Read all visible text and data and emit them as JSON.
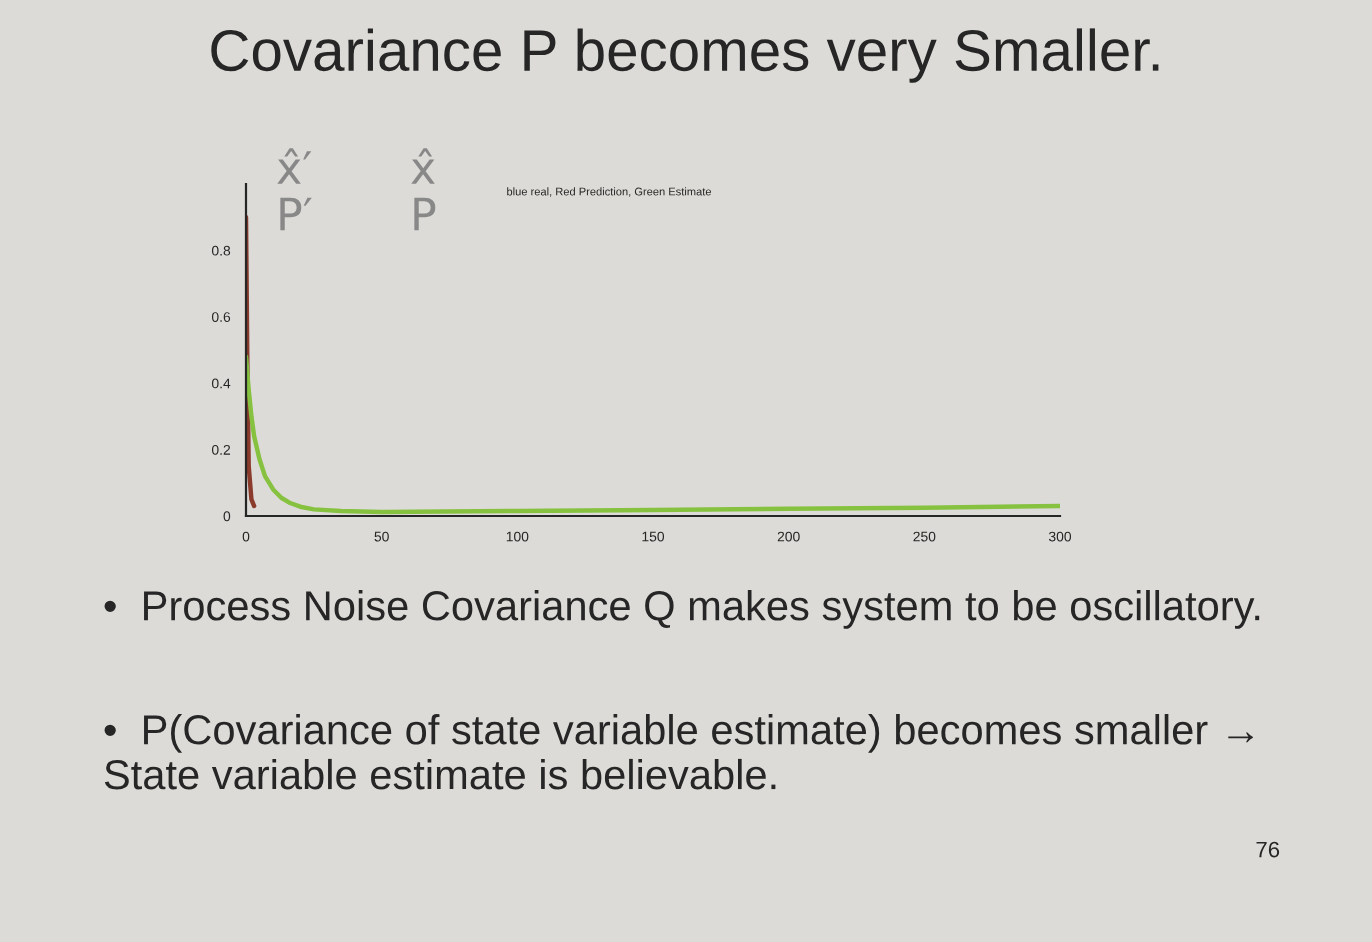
{
  "chart_data": {
    "type": "line",
    "title": "Covariance P becomes very Smaller.",
    "subtitle": "blue real, Red Prediction, Green Estimate",
    "series": [
      {
        "color": "#8a3b2c",
        "x": [
          0,
          0.5,
          1,
          2,
          3
        ],
        "values": [
          0.9,
          0.45,
          0.15,
          0.05,
          0.03
        ]
      },
      {
        "color": "#86c240",
        "x": [
          0,
          1,
          2,
          3,
          5,
          7,
          10,
          13,
          16,
          20,
          25,
          35,
          50,
          100,
          150,
          200,
          250,
          300
        ],
        "values": [
          0.48,
          0.38,
          0.3,
          0.24,
          0.17,
          0.12,
          0.08,
          0.055,
          0.04,
          0.028,
          0.02,
          0.015,
          0.012,
          0.015,
          0.018,
          0.022,
          0.025,
          0.03
        ]
      }
    ],
    "xlim": [
      0,
      300
    ],
    "xticks": [
      0,
      50,
      100,
      150,
      200,
      250,
      300
    ],
    "ylim": [
      0,
      1.0
    ],
    "yticks": [
      0,
      0.2,
      0.4,
      0.6,
      0.8
    ],
    "grid": false,
    "legend": false,
    "annotations": [
      "x̂′ P′",
      "x̂ P",
      "•  Process Noise Covariance Q makes system to be oscillatory.",
      "•  P(Covariance of state variable estimate) becomes smaller → State variable estimate is believable.",
      "76"
    ]
  }
}
